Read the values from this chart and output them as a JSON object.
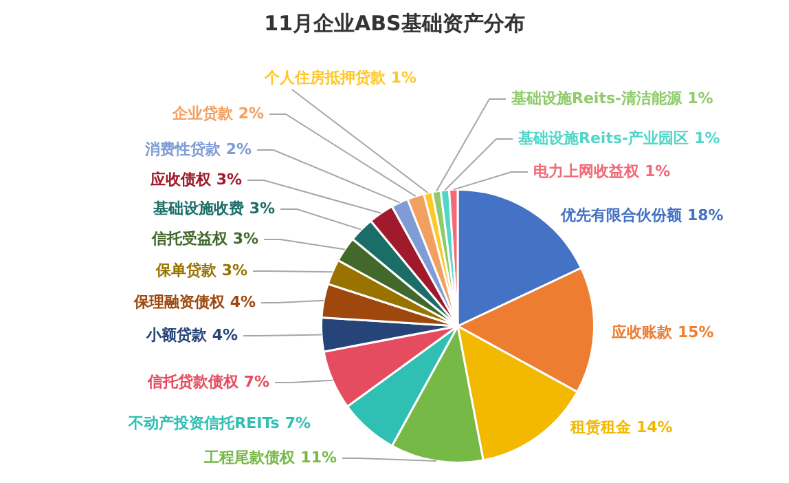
{
  "chart_data": {
    "type": "pie",
    "title": "11月企业ABS基础资产分布",
    "categories": [
      "优先有限合伙份额",
      "应收账款",
      "租赁租金",
      "工程尾款债权",
      "不动产投资信托REITs",
      "信托贷款债权",
      "小额贷款",
      "保理融资债权",
      "保单贷款",
      "信托受益权",
      "基础设施收费",
      "应收债权",
      "消费性贷款",
      "企业贷款",
      "个人住房抵押贷款",
      "基础设施Reits-清洁能源",
      "基础设施Reits-产业园区",
      "电力上网收益权"
    ],
    "values": [
      18,
      15,
      14,
      11,
      7,
      7,
      4,
      4,
      3,
      3,
      3,
      3,
      2,
      2,
      1,
      1,
      1,
      1
    ],
    "colors": [
      "#4472c4",
      "#ed7d31",
      "#f2b900",
      "#76b947",
      "#2fbfb3",
      "#e64c5f",
      "#264478",
      "#9e480e",
      "#997300",
      "#43682b",
      "#1b6e67",
      "#a01a2b",
      "#7f9cd6",
      "#f2a060",
      "#ffc82a",
      "#8fcb6a",
      "#52d6c8",
      "#f06a78"
    ],
    "value_labels": [
      "18%",
      "15%",
      "14%",
      "11%",
      "7%",
      "7%",
      "4%",
      "4%",
      "3%",
      "3%",
      "3%",
      "3%",
      "2%",
      "2%",
      "1%",
      "1%",
      "1%",
      "1%"
    ]
  }
}
